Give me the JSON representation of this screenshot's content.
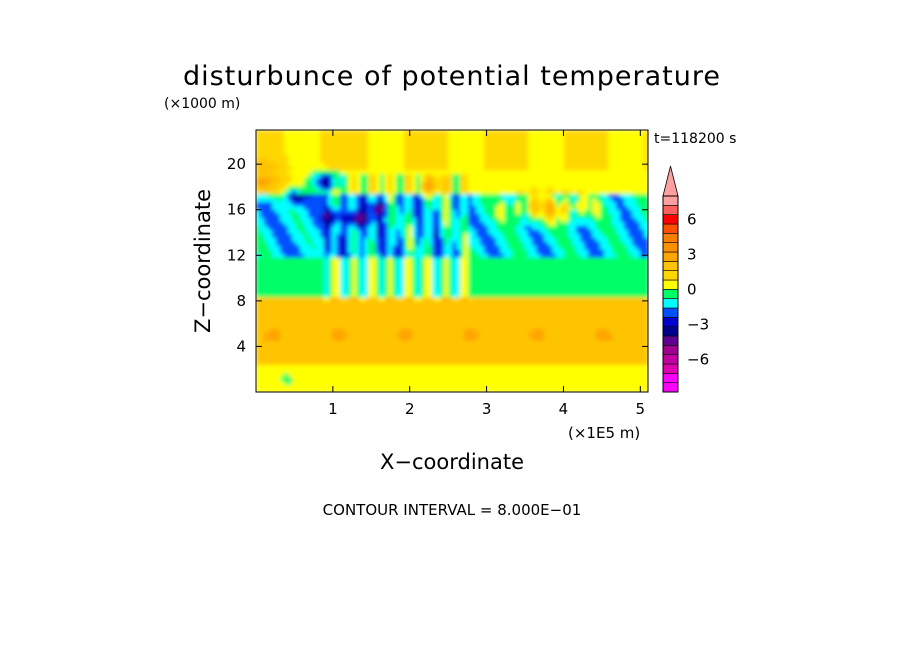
{
  "chart_data": {
    "type": "heatmap",
    "title": "disturbunce of potential temperature",
    "z_unit_note": "(×1000 m)",
    "time_label": "t=118200 s",
    "xlabel": "X−coordinate",
    "ylabel": "Z−coordinate",
    "x_unit_note": "(×1E5 m)",
    "xlim": [
      0,
      5.1
    ],
    "ylim": [
      0,
      23
    ],
    "x_ticks": [
      1,
      2,
      3,
      4,
      5
    ],
    "y_ticks": [
      4,
      8,
      12,
      16,
      20
    ],
    "x_tick_labels": [
      "1",
      "2",
      "3",
      "4",
      "5"
    ],
    "y_tick_labels": [
      "4",
      "8",
      "12",
      "16",
      "20"
    ],
    "footer": "CONTOUR INTERVAL = 8.000E−01",
    "contour_interval": 0.8,
    "colorbar": {
      "min": -8.8,
      "max": 8.0,
      "levels": [
        -8.8,
        -8.0,
        -7.2,
        -6.4,
        -5.6,
        -4.8,
        -4.0,
        -3.2,
        -2.4,
        -1.6,
        -0.8,
        0.0,
        0.8,
        1.6,
        2.4,
        3.2,
        4.0,
        4.8,
        5.6,
        6.4,
        7.2,
        8.0
      ],
      "colors": [
        "#ff00ff",
        "#ff00ff",
        "#e000b0",
        "#c000a0",
        "#a00090",
        "#600090",
        "#00008b",
        "#0000cd",
        "#0050ff",
        "#00ffff",
        "#00ff66",
        "#ffff00",
        "#ffd700",
        "#ffc400",
        "#ffa500",
        "#ff9000",
        "#ff7f00",
        "#ff5000",
        "#ff0000",
        "#ff6060",
        "#ffa0a0"
      ],
      "tick_values": [
        6,
        3,
        0,
        -3,
        -6
      ],
      "tick_labels": [
        "6",
        "3",
        "0",
        "−3",
        "−6"
      ]
    },
    "field_description_layers": [
      {
        "z_range": [
          0,
          2.5
        ],
        "value": 0.4
      },
      {
        "z_range": [
          2.5,
          8.5
        ],
        "value": 1.6
      },
      {
        "z_range": [
          8.5,
          12
        ],
        "value": -0.4
      },
      {
        "z_range": [
          12,
          17.5
        ],
        "value": -1.2
      },
      {
        "z_range": [
          17.5,
          23
        ],
        "value": 0.4
      }
    ]
  }
}
